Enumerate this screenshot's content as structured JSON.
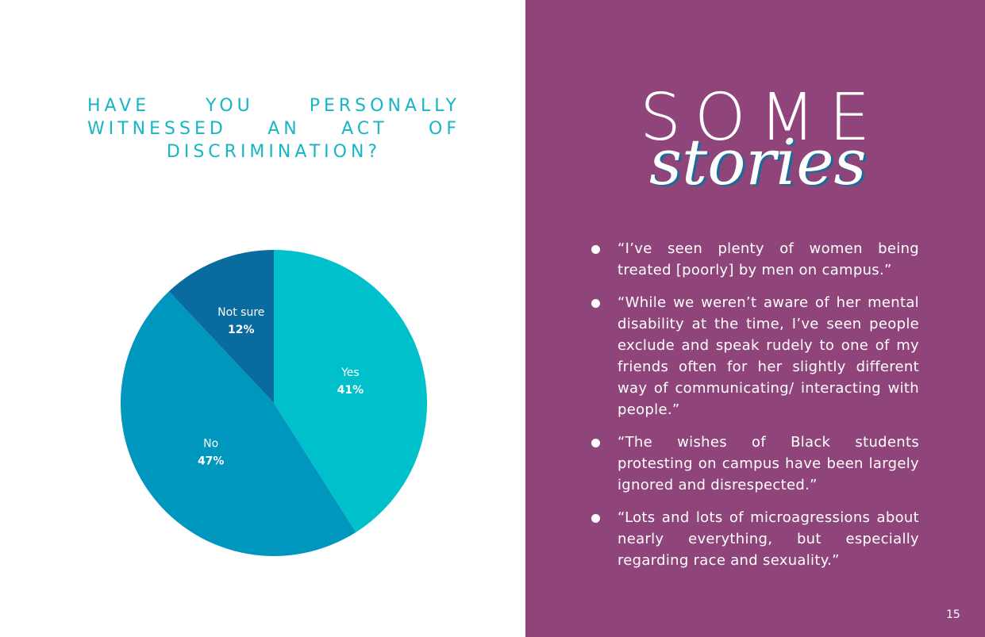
{
  "question": {
    "lines": [
      "HAVE YOU PERSONALLY",
      "WITNESSED AN ACT OF",
      "DISCRIMINATION?"
    ]
  },
  "chart_data": {
    "type": "pie",
    "title": "HAVE YOU PERSONALLY WITNESSED AN ACT OF DISCRIMINATION?",
    "slices": [
      {
        "label": "Yes",
        "value": 41,
        "display": "41%",
        "color": "#00c0cb"
      },
      {
        "label": "No",
        "value": 47,
        "display": "47%",
        "color": "#0097be"
      },
      {
        "label": "Not sure",
        "value": 12,
        "display": "12%",
        "color": "#0a6b9f"
      }
    ],
    "start": "12 o'clock",
    "direction": "clockwise",
    "legend": "none",
    "labels": "inside"
  },
  "heading": {
    "word1": "SOME",
    "word2": "stories"
  },
  "stories": [
    "“I’ve seen plenty of women being treated [poorly] by men on campus.”",
    "“While we weren’t aware of her mental disability at the time, I’ve seen people exclude and speak rudely to one of my friends often for her slightly different way of communicating/ interacting with people.”",
    "“The wishes of Black students protesting on campus have been largely ignored and disrespected.”",
    "“Lots and lots of microagressions about nearly everything, but especially regarding race and sexuality.”"
  ],
  "page_number": "15",
  "colors": {
    "question_text": "#17b6c4",
    "right_panel_bg": "#8f4579",
    "heading_shadow": "#1a6b9a"
  }
}
